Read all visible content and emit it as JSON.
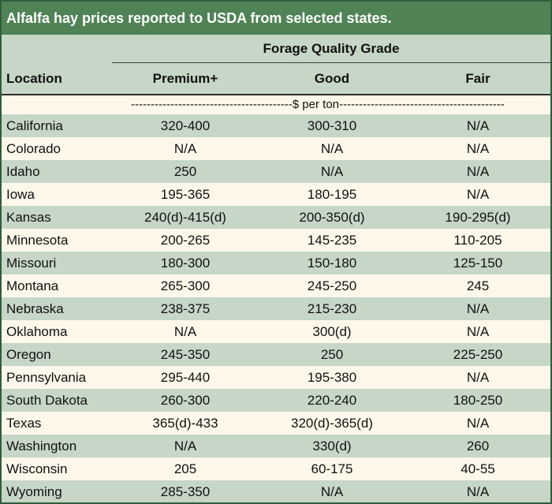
{
  "title": "Alfalfa hay prices reported to USDA from selected states.",
  "header": {
    "group": "Forage Quality Grade",
    "location": "Location",
    "columns": [
      "Premium+",
      "Good",
      "Fair"
    ]
  },
  "units": "-----------------------------------------$ per ton------------------------------------------",
  "rows": [
    [
      "California",
      "320-400",
      "300-310",
      "N/A"
    ],
    [
      "Colorado",
      "N/A",
      "N/A",
      "N/A"
    ],
    [
      "Idaho",
      "250",
      "N/A",
      "N/A"
    ],
    [
      "Iowa",
      "195-365",
      "180-195",
      "N/A"
    ],
    [
      "Kansas",
      "240(d)-415(d)",
      "200-350(d)",
      "190-295(d)"
    ],
    [
      "Minnesota",
      "200-265",
      "145-235",
      "110-205"
    ],
    [
      "Missouri",
      "180-300",
      "150-180",
      "125-150"
    ],
    [
      "Montana",
      "265-300",
      "245-250",
      "245"
    ],
    [
      "Nebraska",
      "238-375",
      "215-230",
      "N/A"
    ],
    [
      "Oklahoma",
      "N/A",
      "300(d)",
      "N/A"
    ],
    [
      "Oregon",
      "245-350",
      "250",
      "225-250"
    ],
    [
      "Pennsylvania",
      "295-440",
      "195-380",
      "N/A"
    ],
    [
      "South Dakota",
      "260-300",
      "220-240",
      "180-250"
    ],
    [
      "Texas",
      "365(d)-433",
      "320(d)-365(d)",
      "N/A"
    ],
    [
      "Washington",
      "N/A",
      "330(d)",
      "260"
    ],
    [
      "Wisconsin",
      "205",
      "60-175",
      "40-55"
    ],
    [
      "Wyoming",
      "285-350",
      "N/A",
      "N/A"
    ]
  ],
  "colors": {
    "title_bg": "#4f8355",
    "band_green": "#c6d6c7",
    "band_cream": "#fdf8ea",
    "border": "#2f5d3a"
  }
}
